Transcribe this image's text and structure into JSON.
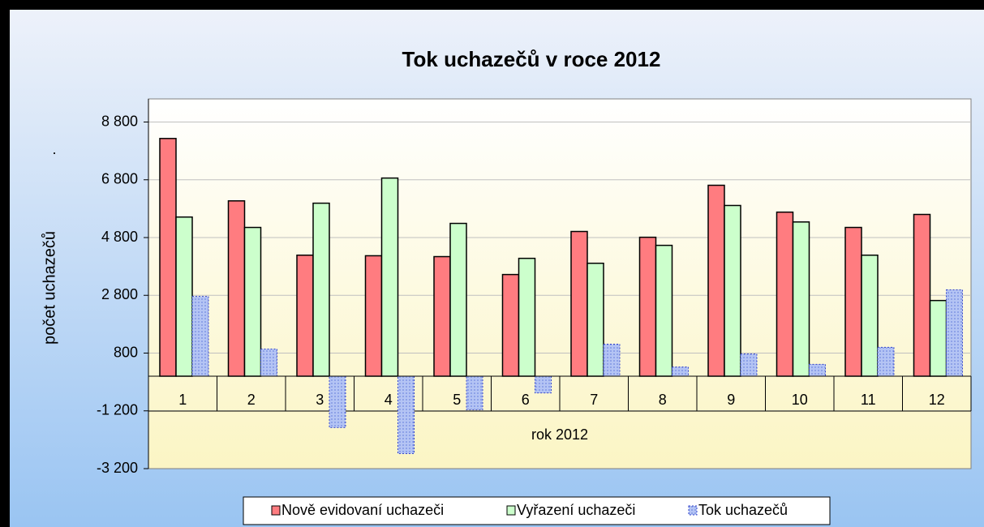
{
  "chart_data": {
    "type": "bar",
    "title": "Tok uchazečů v roce 2012",
    "x_label": "rok 2012",
    "y_label": "počet uchazečů",
    "annotation": ".",
    "categories": [
      "1",
      "2",
      "3",
      "4",
      "5",
      "6",
      "7",
      "8",
      "9",
      "10",
      "11",
      "12"
    ],
    "series": [
      {
        "name": "Nově evidovaní uchazeči",
        "color": "#ff7c80",
        "values": [
          8230,
          6070,
          4190,
          4170,
          4140,
          3520,
          5010,
          4810,
          6610,
          5680,
          5150,
          5600
        ]
      },
      {
        "name": "Vyřazení uchazeči",
        "color": "#ccffcc",
        "values": [
          5510,
          5150,
          5990,
          6860,
          5290,
          4080,
          3910,
          4530,
          5910,
          5340,
          4190,
          2620
        ]
      },
      {
        "name": "Tok uchazečů",
        "color": "#99aaee",
        "values": [
          2760,
          940,
          -1780,
          -2680,
          -1160,
          -580,
          1110,
          320,
          770,
          410,
          1000,
          2990
        ]
      }
    ],
    "ylim": [
      -3200,
      9600
    ],
    "yticks": [
      {
        "value": -3200,
        "label": "-3 200"
      },
      {
        "value": -1200,
        "label": "-1 200"
      },
      800,
      {
        "value": 2800,
        "label": "2 800"
      },
      {
        "value": 4800,
        "label": "4 800"
      },
      {
        "value": 6800,
        "label": "6 800"
      },
      {
        "value": 8800,
        "label": "8 800"
      }
    ],
    "grid": true,
    "legend": "bottom"
  }
}
